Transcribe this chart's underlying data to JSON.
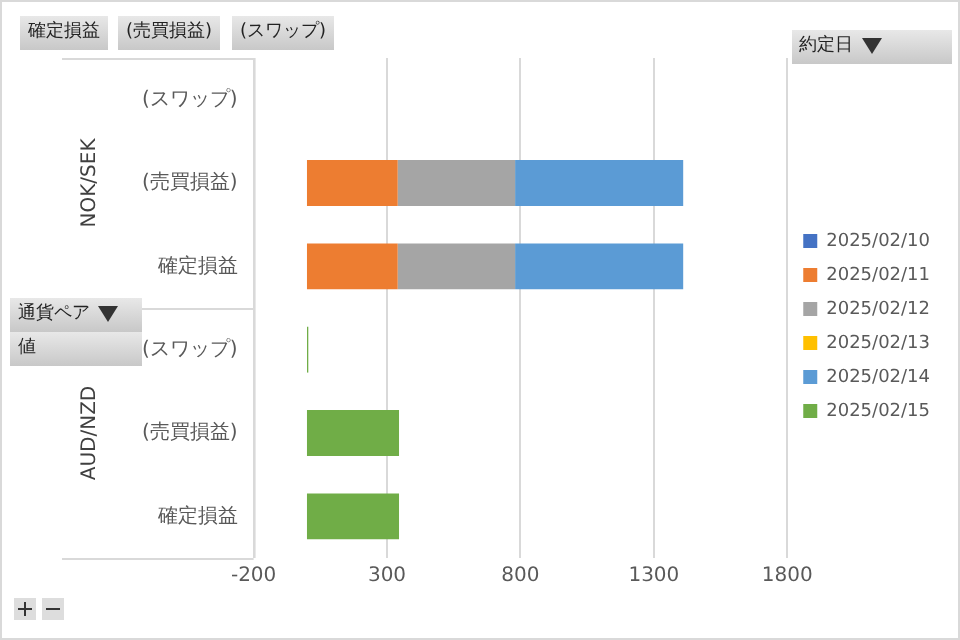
{
  "chart_data": {
    "type": "bar",
    "orientation": "horizontal",
    "stacked": true,
    "categories": [
      "(スワップ)",
      "(売買損益)",
      "確定損益",
      "(スワップ)",
      "(売買損益)",
      "確定損益"
    ],
    "series": [
      {
        "name": "2025/02/10",
        "color": "#4472c4",
        "values": [
          null,
          null,
          null,
          null,
          null,
          null
        ]
      },
      {
        "name": "2025/02/11",
        "color": "#ed7d31",
        "values": [
          null,
          340,
          340,
          null,
          null,
          null
        ]
      },
      {
        "name": "2025/02/12",
        "color": "#a5a5a5",
        "values": [
          null,
          440,
          440,
          null,
          null,
          null
        ]
      },
      {
        "name": "2025/02/13",
        "color": "#ffc000",
        "values": [
          null,
          null,
          null,
          null,
          null,
          null
        ]
      },
      {
        "name": "2025/02/14",
        "color": "#5b9bd5",
        "values": [
          null,
          630,
          630,
          null,
          null,
          null
        ]
      },
      {
        "name": "2025/02/15",
        "color": "#70ad47",
        "values": [
          null,
          null,
          null,
          5,
          345,
          345
        ]
      }
    ],
    "xlim": [
      -200,
      1800
    ],
    "xticks": [
      -200,
      300,
      800,
      1300,
      1800
    ],
    "grid": "x",
    "legend": "right",
    "legend_title": "約定日",
    "annotations": [
      "確定損益",
      "(売買損益)",
      "(スワップ)",
      "通貨ペア",
      "値",
      "NOK/SEK",
      "AUD/NZD"
    ]
  }
}
